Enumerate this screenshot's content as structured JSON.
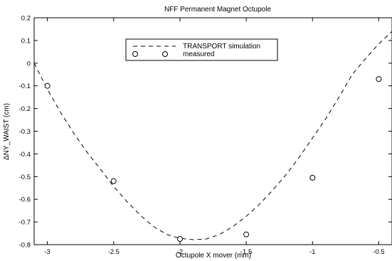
{
  "chart_data": {
    "type": "line",
    "title": "NFF Permanent Magnet Octupole",
    "xlabel": "Octupole X mover (mm)",
    "ylabel": "ΔNY_WAIST (cm)",
    "xlim": [
      -3.1,
      -0.4
    ],
    "ylim": [
      -0.8,
      0.2
    ],
    "x_ticks": [
      -3,
      -2.5,
      -2,
      -1.5,
      -1,
      -0.5
    ],
    "x_tick_labels": [
      "-3",
      "-2.5",
      "-2",
      "-1.5",
      "-1",
      "-0.5"
    ],
    "y_ticks": [
      -0.8,
      -0.7,
      -0.6,
      -0.5,
      -0.4,
      -0.3,
      -0.2,
      -0.1,
      0,
      0.1,
      0.2
    ],
    "y_tick_labels": [
      "-0.8",
      "-0.7",
      "-0.6",
      "-0.5",
      "-0.4",
      "-0.3",
      "-0.2",
      "-0.1",
      "0",
      "0.1",
      "0.2"
    ],
    "grid": false,
    "legend_position": "top-center",
    "series": [
      {
        "name": "TRANSPORT simulation",
        "style": "dashed-line",
        "color": "#000000",
        "x": [
          -3.1,
          -3.0,
          -2.9,
          -2.8,
          -2.7,
          -2.6,
          -2.5,
          -2.4,
          -2.3,
          -2.2,
          -2.1,
          -2.0,
          -1.9,
          -1.8,
          -1.7,
          -1.6,
          -1.5,
          -1.4,
          -1.3,
          -1.2,
          -1.1,
          -1.0,
          -0.9,
          -0.8,
          -0.7,
          -0.6,
          -0.5,
          -0.4
        ],
        "y": [
          0.0,
          -0.115,
          -0.218,
          -0.31,
          -0.393,
          -0.467,
          -0.544,
          -0.61,
          -0.67,
          -0.72,
          -0.755,
          -0.772,
          -0.778,
          -0.775,
          -0.755,
          -0.72,
          -0.675,
          -0.622,
          -0.56,
          -0.492,
          -0.415,
          -0.33,
          -0.245,
          -0.15,
          -0.05,
          0.02,
          0.085,
          0.14
        ]
      },
      {
        "name": "measured",
        "style": "open-circle",
        "color": "#000000",
        "x": [
          -3.0,
          -2.5,
          -2.0,
          -1.5,
          -1.0,
          -0.5
        ],
        "y": [
          -0.1,
          -0.52,
          -0.775,
          -0.755,
          -0.505,
          -0.07
        ]
      }
    ]
  }
}
